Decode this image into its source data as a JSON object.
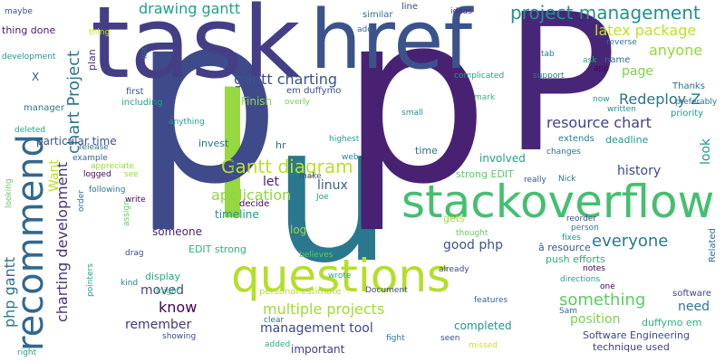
{
  "words": [
    {
      "text": "p",
      "color": "#3e4a89"
    },
    {
      "text": "p",
      "color": "#482173"
    },
    {
      "text": "task",
      "color": "#433e85"
    },
    {
      "text": "href",
      "color": "#3b528b"
    },
    {
      "text": "P",
      "color": "#482677"
    },
    {
      "text": "questions",
      "color": "#b5de2b"
    },
    {
      "text": "stackoverflow",
      "color": "#44bf70"
    },
    {
      "text": "recommend",
      "color": "#31688e"
    },
    {
      "text": "project management",
      "color": "#21918c"
    },
    {
      "text": "Gantt diagram",
      "color": "#bddf26"
    },
    {
      "text": "multiple projects",
      "color": "#a2da37"
    },
    {
      "text": "chart Project",
      "color": "#2a788e"
    },
    {
      "text": "charting development",
      "color": "#46327e"
    },
    {
      "text": "php gantt",
      "color": "#2c728e"
    },
    {
      "text": "Redeploy Z",
      "color": "#2c728e"
    },
    {
      "text": "everyone",
      "color": "#2a788e"
    },
    {
      "text": "something",
      "color": "#5ec962"
    },
    {
      "text": "drawing gantt",
      "color": "#1fa187"
    },
    {
      "text": "latex package",
      "color": "#c2df23"
    },
    {
      "text": "gantt charting",
      "color": "#3b528b"
    },
    {
      "text": "resource chart",
      "color": "#424186"
    },
    {
      "text": "application",
      "color": "#90d743"
    },
    {
      "text": "management tool",
      "color": "#3f4788"
    },
    {
      "text": "anyone",
      "color": "#90d743"
    },
    {
      "text": "good php",
      "color": "#3b528b"
    },
    {
      "text": "remember",
      "color": "#46337e"
    },
    {
      "text": "moved",
      "color": "#3f4788"
    },
    {
      "text": "know",
      "color": "#440154"
    },
    {
      "text": "position",
      "color": "#7ad151"
    },
    {
      "text": "need",
      "color": "#2a788e"
    },
    {
      "text": "page",
      "color": "#7ad151"
    },
    {
      "text": "linux",
      "color": "#34618d"
    },
    {
      "text": "history",
      "color": "#3e4989"
    },
    {
      "text": "Want",
      "color": "#bddf26"
    },
    {
      "text": "let",
      "color": "#481f70"
    },
    {
      "text": "look",
      "color": "#1f978b"
    },
    {
      "text": "completed",
      "color": "#1f988b"
    },
    {
      "text": "important",
      "color": "#453882"
    },
    {
      "text": "someone",
      "color": "#482374"
    },
    {
      "text": "timeline",
      "color": "#1f978b"
    },
    {
      "text": "log",
      "color": "#9bd93c"
    },
    {
      "text": "Finish",
      "color": "#95d840"
    },
    {
      "text": "particular time",
      "color": "#3b528b"
    },
    {
      "text": "involved",
      "color": "#20a486"
    },
    {
      "text": "strong EDIT",
      "color": "#5ec962"
    },
    {
      "text": "deadline",
      "color": "#1f988b"
    },
    {
      "text": "hr",
      "color": "#2e6e8e"
    },
    {
      "text": "invest",
      "color": "#2c728e"
    },
    {
      "text": "gets",
      "color": "#a0da39"
    },
    {
      "text": "time",
      "color": "#2d708e"
    },
    {
      "text": "Software Engineering",
      "color": "#3e4989"
    },
    {
      "text": "technique used",
      "color": "#433e85"
    },
    {
      "text": "duffymo em",
      "color": "#2db27d"
    },
    {
      "text": "software",
      "color": "#3f4788"
    },
    {
      "text": "push efforts",
      "color": "#2ab07f"
    },
    {
      "text": "â resource",
      "color": "#39558c"
    },
    {
      "text": "EDIT strong",
      "color": "#2db27d"
    },
    {
      "text": "personal estimate",
      "color": "#b5de2b"
    },
    {
      "text": "display",
      "color": "#25ab82"
    },
    {
      "text": "em duffymo",
      "color": "#3c4f8a"
    },
    {
      "text": "manager",
      "color": "#2a788e"
    },
    {
      "text": "Thanks",
      "color": "#2d708e"
    },
    {
      "text": "extends",
      "color": "#26828e"
    },
    {
      "text": "Related",
      "color": "#2d718e"
    },
    {
      "text": "similar",
      "color": "#2e6e8e"
    },
    {
      "text": "line",
      "color": "#3f4889"
    },
    {
      "text": "X",
      "color": "#3b528b"
    },
    {
      "text": "thing done",
      "color": "#481c6e"
    },
    {
      "text": "plan",
      "color": "#46327e"
    },
    {
      "text": "first",
      "color": "#38588c"
    },
    {
      "text": "including",
      "color": "#1f9e89"
    },
    {
      "text": "priority",
      "color": "#1fa088"
    },
    {
      "text": "written",
      "color": "#20928c"
    },
    {
      "text": "now",
      "color": "#1f9e89"
    },
    {
      "text": "preferably",
      "color": "#2c728e"
    },
    {
      "text": "reverse",
      "color": "#2c728e"
    },
    {
      "text": "name",
      "color": "#2e6e8e"
    },
    {
      "text": "app",
      "color": "#440154"
    },
    {
      "text": "tab",
      "color": "#2a788e"
    },
    {
      "text": "support",
      "color": "#2a788e"
    },
    {
      "text": "mark",
      "color": "#37b878"
    },
    {
      "text": "complicated",
      "color": "#20a386"
    },
    {
      "text": "ask",
      "color": "#27ad81"
    },
    {
      "text": "ideas",
      "color": "#46327e"
    },
    {
      "text": "add",
      "color": "#31688e"
    },
    {
      "text": "thing",
      "color": "#c8e020"
    },
    {
      "text": "maybe",
      "color": "#3e4989"
    },
    {
      "text": "development",
      "color": "#1f978b"
    },
    {
      "text": "list",
      "color": "#2c728e"
    },
    {
      "text": "overly",
      "color": "#75d054"
    },
    {
      "text": "small",
      "color": "#20928c"
    },
    {
      "text": "anything",
      "color": "#1f9e89"
    },
    {
      "text": "highest",
      "color": "#1f9e89"
    },
    {
      "text": "changes",
      "color": "#2c728e"
    },
    {
      "text": "Nick",
      "color": "#2a788e"
    },
    {
      "text": "really",
      "color": "#3b528b"
    },
    {
      "text": "Joe",
      "color": "#20a386"
    },
    {
      "text": "make",
      "color": "#3f4889"
    },
    {
      "text": "web",
      "color": "#23888e"
    },
    {
      "text": "decide",
      "color": "#440154"
    },
    {
      "text": "deleted",
      "color": "#22a785"
    },
    {
      "text": "release",
      "color": "#2e6e8e"
    },
    {
      "text": "example",
      "color": "#31688e"
    },
    {
      "text": "appreciate",
      "color": "#95d840"
    },
    {
      "text": "logged",
      "color": "#440154"
    },
    {
      "text": "see",
      "color": "#9bd93c"
    },
    {
      "text": "following",
      "color": "#2a788e"
    },
    {
      "text": "write",
      "color": "#440154"
    },
    {
      "text": "new",
      "color": "#31688e"
    },
    {
      "text": "order",
      "color": "#2a788e"
    },
    {
      "text": "assign",
      "color": "#65cb5e"
    },
    {
      "text": "looking",
      "color": "#65cb5e"
    },
    {
      "text": "drag",
      "color": "#3f4788"
    },
    {
      "text": "believes",
      "color": "#5ec962"
    },
    {
      "text": "kind",
      "color": "#26828e"
    },
    {
      "text": "thought",
      "color": "#65cb5e"
    },
    {
      "text": "reorder",
      "color": "#3b528b"
    },
    {
      "text": "person",
      "color": "#26828e"
    },
    {
      "text": "fixes",
      "color": "#1f978b"
    },
    {
      "text": "notes",
      "color": "#440154"
    },
    {
      "text": "directions",
      "color": "#20a386"
    },
    {
      "text": "Sam",
      "color": "#31688e"
    },
    {
      "text": "one",
      "color": "#440154"
    },
    {
      "text": "already",
      "color": "#3f4788"
    },
    {
      "text": "pointers",
      "color": "#1f9e89"
    },
    {
      "text": "might",
      "color": "#35b779"
    },
    {
      "text": "wrote",
      "color": "#25ab82"
    },
    {
      "text": "Document",
      "color": "#3e4a89"
    },
    {
      "text": "features",
      "color": "#31688e"
    },
    {
      "text": "clear",
      "color": "#2d718e"
    },
    {
      "text": "showing",
      "color": "#3e4a89"
    },
    {
      "text": "fight",
      "color": "#2a788e"
    },
    {
      "text": "seen",
      "color": "#3e4989"
    },
    {
      "text": "added",
      "color": "#2ab07f"
    },
    {
      "text": "missed",
      "color": "#d2e21b"
    },
    {
      "text": "right",
      "color": "#1f9e89"
    },
    {
      "text": "i",
      "color": "#3b528b"
    },
    {
      "text": "l",
      "color": "#a0da39"
    },
    {
      "text": "i",
      "color": "#93d741"
    },
    {
      "text": "l",
      "color": "#2c728e"
    },
    {
      "text": "i",
      "color": "#a0da39"
    },
    {
      "text": "l",
      "color": "#95d840"
    },
    {
      "text": "u",
      "color": "#2a788e"
    }
  ]
}
